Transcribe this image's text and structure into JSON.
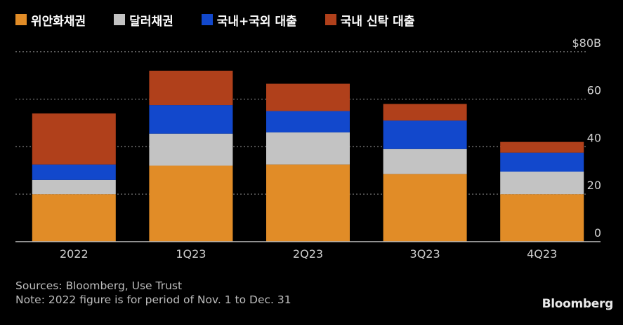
{
  "chart_data": {
    "type": "bar",
    "stacked": true,
    "categories": [
      "2022",
      "1Q23",
      "2Q23",
      "3Q23",
      "4Q23"
    ],
    "series": [
      {
        "name": "위안화채권",
        "color": "#e18c27",
        "values": [
          20.0,
          32.0,
          32.5,
          28.5,
          20.0
        ]
      },
      {
        "name": "달러채권",
        "color": "#c3c3c3",
        "values": [
          6.0,
          13.5,
          13.5,
          10.5,
          9.5
        ]
      },
      {
        "name": "국내+국외 대출",
        "color": "#1248cc",
        "values": [
          6.5,
          12.0,
          9.0,
          12.0,
          8.0
        ]
      },
      {
        "name": "국내 신탁 대출",
        "color": "#b0401b",
        "values": [
          21.5,
          14.5,
          11.5,
          7.0,
          4.5
        ]
      }
    ],
    "yticks": [
      "0",
      "20",
      "40",
      "60",
      "$80B"
    ],
    "ytick_values": [
      0,
      20,
      40,
      60,
      80
    ],
    "ylim": [
      0,
      80
    ],
    "grid": true,
    "legend_position": "top-left"
  },
  "footer": {
    "sources": "Sources: Bloomberg, Use Trust",
    "note": "Note: 2022 figure is for period of Nov. 1 to Dec. 31"
  },
  "brand": "Bloomberg"
}
